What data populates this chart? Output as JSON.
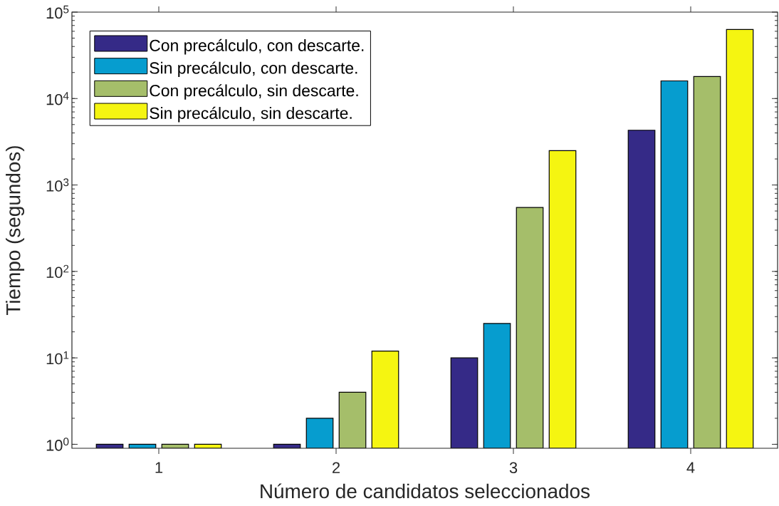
{
  "chart_data": {
    "type": "bar",
    "xlabel": "Número de candidatos seleccionados",
    "ylabel": "Tiempo (segundos)",
    "categories": [
      "1",
      "2",
      "3",
      "4"
    ],
    "series": [
      {
        "name": "Con precálculo, con descarte.",
        "color": "#352a87",
        "values": [
          1,
          1,
          10,
          4300
        ]
      },
      {
        "name": "Sin precálculo, con descarte.",
        "color": "#069dcf",
        "values": [
          1,
          2,
          25,
          16000
        ]
      },
      {
        "name": "Con precálculo, sin descarte.",
        "color": "#a5be6a",
        "values": [
          1,
          4,
          550,
          18000
        ]
      },
      {
        "name": "Sin precálculo, sin descarte.",
        "color": "#f5f511",
        "values": [
          1,
          12,
          2500,
          63000
        ]
      }
    ],
    "log": "y",
    "ylim": [
      0.9,
      100000
    ],
    "yticks": [
      {
        "value": 1,
        "label": "10$^{0}$"
      },
      {
        "value": 10,
        "label": "10$^{1}$"
      },
      {
        "value": 100,
        "label": "10$^{2}$"
      },
      {
        "value": 1000,
        "label": "10$^{3}$"
      },
      {
        "value": 10000,
        "label": "10$^{4}$"
      },
      {
        "value": 100000,
        "label": "10$^{5}$"
      }
    ],
    "legend": "top left",
    "grid": false
  }
}
